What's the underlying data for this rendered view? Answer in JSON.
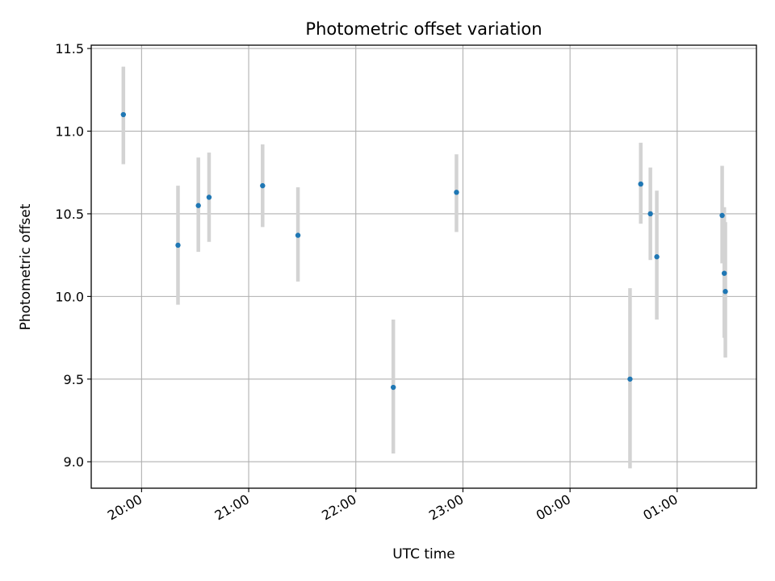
{
  "chart_data": {
    "type": "scatter",
    "title": "Photometric offset variation",
    "xlabel": "UTC time",
    "ylabel": "Photometric offset",
    "x_unit": "hours since 19:00 UTC",
    "xlim": [
      0.53,
      6.74
    ],
    "ylim": [
      8.84,
      11.52
    ],
    "grid": true,
    "x_ticks": [
      {
        "value": 1,
        "label": "20:00"
      },
      {
        "value": 2,
        "label": "21:00"
      },
      {
        "value": 3,
        "label": "22:00"
      },
      {
        "value": 4,
        "label": "23:00"
      },
      {
        "value": 5,
        "label": "00:00"
      },
      {
        "value": 6,
        "label": "01:00"
      }
    ],
    "y_ticks": [
      {
        "value": 9.0,
        "label": "9.0"
      },
      {
        "value": 9.5,
        "label": "9.5"
      },
      {
        "value": 10.0,
        "label": "10.0"
      },
      {
        "value": 10.5,
        "label": "10.5"
      },
      {
        "value": 11.0,
        "label": "11.0"
      },
      {
        "value": 11.5,
        "label": "11.5"
      }
    ],
    "series": [
      {
        "name": "offset",
        "marker_color": "#1f77b4",
        "errorbar_color": "#d3d3d3",
        "points": [
          {
            "x": 0.83,
            "y": 11.1,
            "yerr_low": 10.8,
            "yerr_high": 11.39
          },
          {
            "x": 1.34,
            "y": 10.31,
            "yerr_low": 9.95,
            "yerr_high": 10.67
          },
          {
            "x": 1.53,
            "y": 10.55,
            "yerr_low": 10.27,
            "yerr_high": 10.84
          },
          {
            "x": 1.63,
            "y": 10.6,
            "yerr_low": 10.33,
            "yerr_high": 10.87
          },
          {
            "x": 2.13,
            "y": 10.67,
            "yerr_low": 10.42,
            "yerr_high": 10.92
          },
          {
            "x": 2.46,
            "y": 10.37,
            "yerr_low": 10.09,
            "yerr_high": 10.66
          },
          {
            "x": 3.35,
            "y": 9.45,
            "yerr_low": 9.05,
            "yerr_high": 9.86
          },
          {
            "x": 3.94,
            "y": 10.63,
            "yerr_low": 10.39,
            "yerr_high": 10.86
          },
          {
            "x": 5.56,
            "y": 9.5,
            "yerr_low": 8.96,
            "yerr_high": 10.05
          },
          {
            "x": 5.66,
            "y": 10.68,
            "yerr_low": 10.44,
            "yerr_high": 10.93
          },
          {
            "x": 5.75,
            "y": 10.5,
            "yerr_low": 10.22,
            "yerr_high": 10.78
          },
          {
            "x": 5.81,
            "y": 10.24,
            "yerr_low": 9.86,
            "yerr_high": 10.64
          },
          {
            "x": 6.42,
            "y": 10.49,
            "yerr_low": 10.2,
            "yerr_high": 10.79
          },
          {
            "x": 6.44,
            "y": 10.14,
            "yerr_low": 9.75,
            "yerr_high": 10.54
          },
          {
            "x": 6.45,
            "y": 10.03,
            "yerr_low": 9.63,
            "yerr_high": 10.45
          }
        ]
      }
    ]
  }
}
